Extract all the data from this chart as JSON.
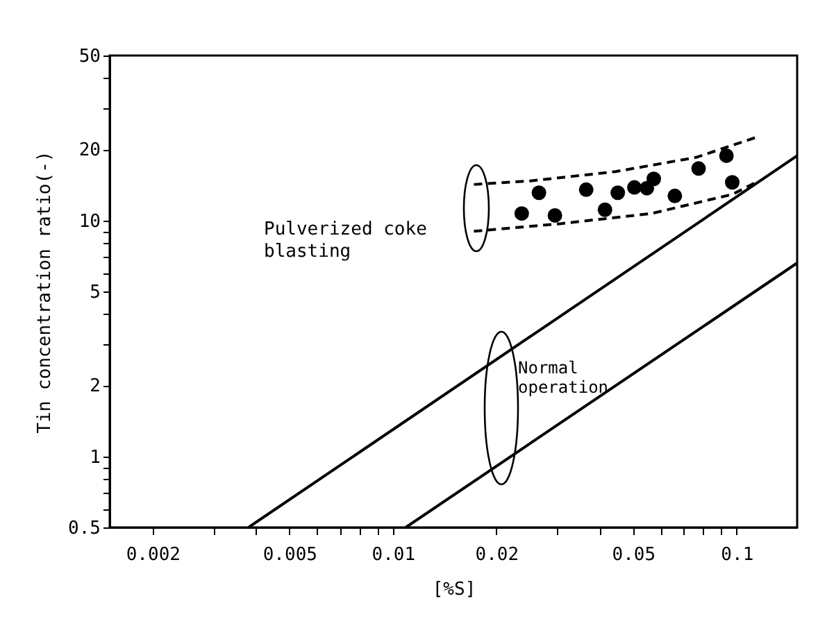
{
  "chart_data": {
    "type": "line",
    "xlabel": "[%S]",
    "ylabel": "Tin concentration ratio(-)",
    "log": "xy",
    "grid": false,
    "xlim": [
      0.0015,
      0.15
    ],
    "ylim": [
      0.5,
      50
    ],
    "xticks": [
      0.002,
      {
        "value": 0.003,
        "label": null
      },
      {
        "value": 0.004,
        "label": null
      },
      0.005,
      {
        "value": 0.006,
        "label": null
      },
      {
        "value": 0.007,
        "label": null
      },
      {
        "value": 0.008,
        "label": null
      },
      {
        "value": 0.009,
        "label": null
      },
      0.01,
      0.02,
      {
        "value": 0.03,
        "label": null
      },
      {
        "value": 0.04,
        "label": null
      },
      0.05,
      {
        "value": 0.06,
        "label": null
      },
      {
        "value": 0.07,
        "label": null
      },
      {
        "value": 0.08,
        "label": null
      },
      {
        "value": 0.09,
        "label": null
      },
      0.1
    ],
    "yticks": [
      0.5,
      {
        "value": 0.6,
        "label": null
      },
      {
        "value": 0.7,
        "label": null
      },
      {
        "value": 0.8,
        "label": null
      },
      {
        "value": 0.9,
        "label": null
      },
      1,
      2,
      {
        "value": 3,
        "label": null
      },
      {
        "value": 4,
        "label": null
      },
      5,
      {
        "value": 6,
        "label": null
      },
      {
        "value": 7,
        "label": null
      },
      {
        "value": 8,
        "label": null
      },
      {
        "value": 9,
        "label": null
      },
      10,
      20,
      {
        "value": 30,
        "label": null
      },
      {
        "value": 40,
        "label": null
      },
      50
    ],
    "series": [
      {
        "line_style": "solid",
        "color": "#000000",
        "x": [
          0.0038,
          0.15
        ],
        "values": [
          0.5,
          18.8
        ]
      },
      {
        "line_style": "solid",
        "color": "#000000",
        "x": [
          0.0109,
          0.15
        ],
        "values": [
          0.5,
          6.6
        ]
      },
      {
        "line_style": "dashed",
        "color": "#000000",
        "x": [
          0.0172,
          0.0251,
          0.0444,
          0.0762,
          0.116
        ],
        "values": [
          14.2,
          14.7,
          16.1,
          18.5,
          22.7
        ]
      },
      {
        "line_style": "dashed",
        "color": "#000000",
        "x": [
          0.0172,
          0.0309,
          0.0566,
          0.0972,
          0.116
        ],
        "values": [
          9.0,
          9.7,
          10.7,
          12.9,
          14.7
        ]
      },
      {
        "type": "scatter",
        "marker": "circle",
        "color": "#000000",
        "x": [
          0.0237,
          0.0266,
          0.0296,
          0.0365,
          0.0414,
          0.0451,
          0.0504,
          0.0548,
          0.0574,
          0.0661,
          0.0775,
          0.0934,
          0.0971
        ],
        "values": [
          10.7,
          13.1,
          10.5,
          13.5,
          11.1,
          13.1,
          13.8,
          13.7,
          15.0,
          12.7,
          16.6,
          18.8,
          14.5
        ]
      }
    ],
    "annotations": [
      "Pulverized coke\nblasting",
      "Normal\noperation"
    ]
  }
}
